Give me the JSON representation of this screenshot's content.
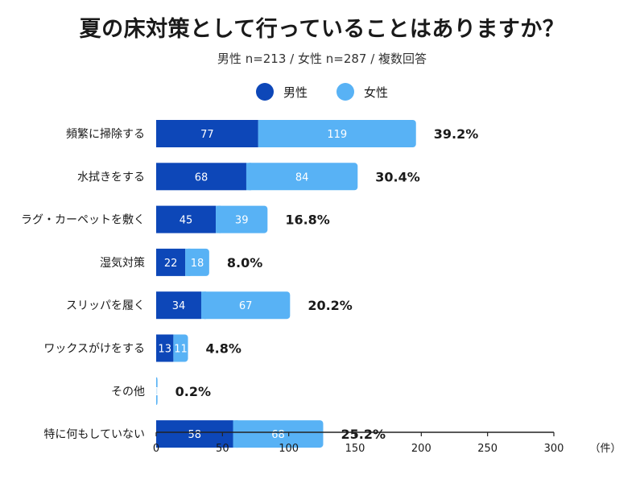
{
  "header": {
    "title": "夏の床対策として行っていることはありますか？",
    "subtitle": "男性 n=213 / 女性 n=287 / 複数回答"
  },
  "colors": {
    "male": "#0d47b8",
    "female": "#58b2f5",
    "axis": "#222222"
  },
  "chart_data": {
    "type": "bar",
    "orientation": "horizontal",
    "stacked": true,
    "title": "夏の床対策として行っていることはありますか？",
    "subtitle": "男性 n=213 / 女性 n=287 / 複数回答",
    "categories": [
      "頻繁に掃除する",
      "水拭きをする",
      "ラグ・カーペットを敷く",
      "湿気対策",
      "スリッパを履く",
      "ワックスがけをする",
      "その他",
      "特に何もしていない"
    ],
    "series": [
      {
        "name": "男性",
        "values": [
          77,
          68,
          45,
          22,
          34,
          13,
          0,
          58
        ]
      },
      {
        "name": "女性",
        "values": [
          119,
          84,
          39,
          18,
          67,
          11,
          1,
          68
        ]
      }
    ],
    "percent_labels": [
      "39.2%",
      "30.4%",
      "16.8%",
      "8.0%",
      "20.2%",
      "4.8%",
      "0.2%",
      "25.2%"
    ],
    "xlim": [
      0,
      300
    ],
    "xticks": [
      0,
      50,
      100,
      150,
      200,
      250,
      300
    ],
    "xunit": "（件）",
    "legend_position": "top-center",
    "grid": false
  }
}
